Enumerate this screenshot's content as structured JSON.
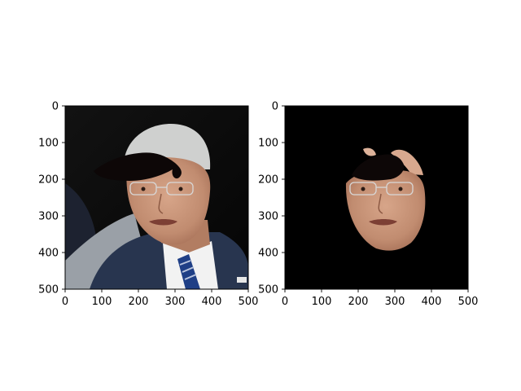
{
  "figure": {
    "panels": [
      {
        "id": "left",
        "content": "portrait-with-mustache-overlay",
        "background": "dark",
        "x_ticks": [
          "0",
          "100",
          "200",
          "300",
          "400",
          "500"
        ],
        "y_ticks": [
          "0",
          "100",
          "200",
          "300",
          "400",
          "500"
        ]
      },
      {
        "id": "right",
        "content": "segmented-face-with-mustache-overlay",
        "background": "black",
        "x_ticks": [
          "0",
          "100",
          "200",
          "300",
          "400",
          "500"
        ],
        "y_ticks": [
          "0",
          "100",
          "200",
          "300",
          "400",
          "500"
        ]
      }
    ]
  },
  "colors": {
    "skin": "#c9977c",
    "skin_light": "#ddb29a",
    "hair": "#cfd0cf",
    "suit": "#28354f",
    "shirt": "#f2f2f2",
    "tie": "#1f3f86",
    "mustache": "#0d0707",
    "background_dark": "#0a0a0a",
    "background_black": "#000000"
  }
}
